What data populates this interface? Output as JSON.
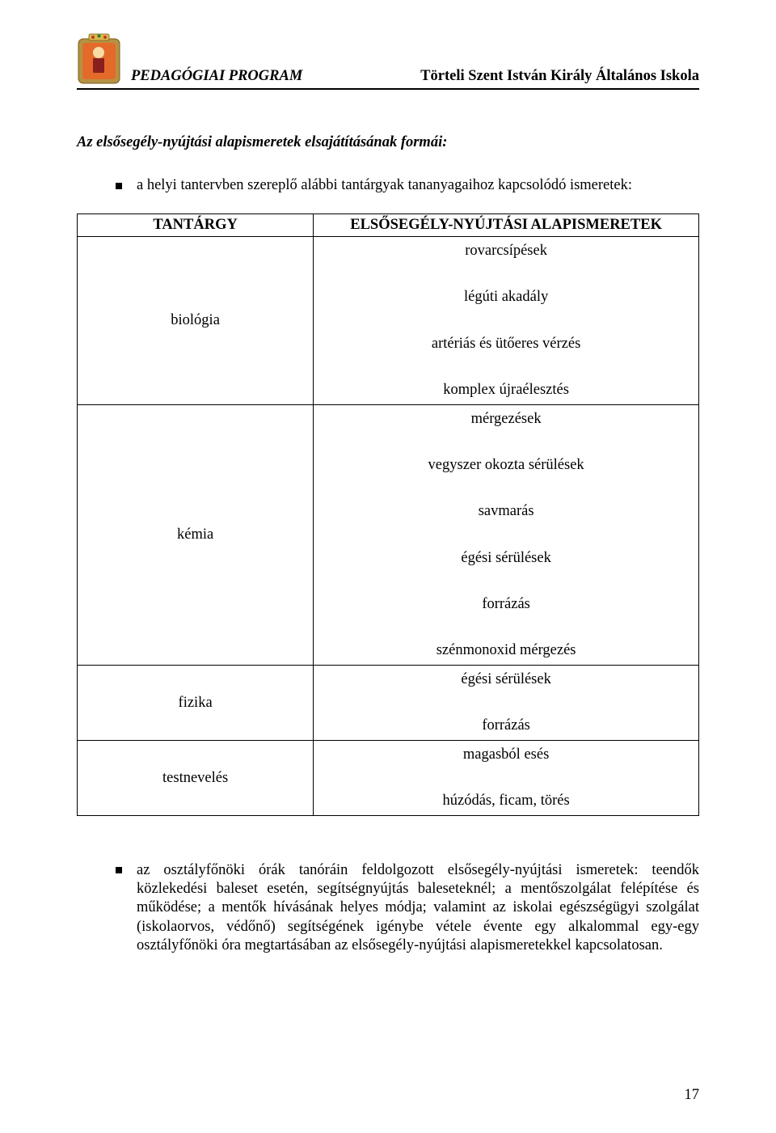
{
  "header": {
    "left": "PEDAGÓGIAI PROGRAM",
    "right": "Törteli Szent István Király Általános Iskola"
  },
  "section_title": "Az elsősegély-nyújtási alapismeretek elsajátításának formái:",
  "bullet1": "a helyi tantervben szereplő alábbi tantárgyak tananyagaihoz kapcsolódó ismeretek:",
  "table": {
    "head_left": "TANTÁRGY",
    "head_right": "ELSŐSEGÉLY-NYÚJTÁSI ALAPISMERETEK",
    "rows": [
      {
        "left": "biológia",
        "right": "rovarcsípések\n\nlégúti akadály\n\nartériás és ütőeres vérzés\n\nkomplex újraélesztés"
      },
      {
        "left": "kémia",
        "right": "mérgezések\n\nvegyszer okozta sérülések\n\nsavmarás\n\négési sérülések\n\nforrázás\n\nszénmonoxid mérgezés"
      },
      {
        "left": "fizika",
        "right": "égési sérülések\n\nforrázás"
      },
      {
        "left": "testnevelés",
        "right": "magasból esés\n\nhúzódás, ficam, törés"
      }
    ]
  },
  "bullet2": "az osztályfőnöki órák tanóráin feldolgozott elsősegély-nyújtási ismeretek: teendők közlekedési baleset esetén, segítségnyújtás baleseteknél; a mentőszolgálat felépítése és működése; a mentők hívásának helyes módja; valamint az iskolai egészségügyi szolgálat (iskolaorvos, védőnő) segítségének igénybe vétele évente egy alkalommal egy-egy osztályfőnöki óra megtartásában az elsősegély-nyújtási alapismeretekkel kapcsolatosan.",
  "page_number": "17",
  "colors": {
    "text": "#000000",
    "background": "#ffffff",
    "rule": "#000000"
  },
  "typography": {
    "body_fontsize_pt": 14,
    "header_fontsize_pt": 14,
    "font_family": "Times New Roman"
  }
}
